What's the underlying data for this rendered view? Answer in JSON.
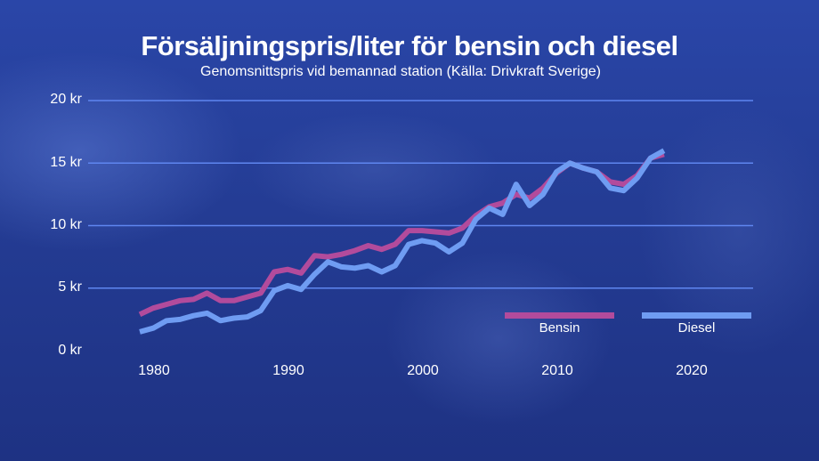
{
  "title": "Försäljningspris/liter för bensin och diesel",
  "subtitle": "Genomsnittspris vid bemannad station (Källa: Drivkraft Sverige)",
  "colors": {
    "bensin": "#b24b9c",
    "diesel": "#6f9cf2",
    "grid": "#5f86f0"
  },
  "y_ticks": [
    "20 kr",
    "15 kr",
    "10 kr",
    "5 kr",
    "0 kr"
  ],
  "x_ticks": [
    "1980",
    "1990",
    "2000",
    "2010",
    "2020"
  ],
  "legend": {
    "bensin": "Bensin",
    "diesel": "Diesel"
  },
  "chart_data": {
    "type": "line",
    "title": "Försäljningspris/liter för bensin och diesel",
    "subtitle": "Genomsnittspris vid bemannad station (Källa: Drivkraft Sverige)",
    "xlabel": "",
    "ylabel": "kr",
    "ylim": [
      0,
      20
    ],
    "grid": true,
    "legend_position": "lower right",
    "x": [
      1980,
      1981,
      1982,
      1983,
      1984,
      1985,
      1986,
      1987,
      1988,
      1989,
      1990,
      1991,
      1992,
      1993,
      1994,
      1995,
      1996,
      1997,
      1998,
      1999,
      2000,
      2001,
      2002,
      2003,
      2004,
      2005,
      2006,
      2007,
      2008,
      2009,
      2010,
      2011,
      2012,
      2013,
      2014,
      2015,
      2016,
      2017,
      2018,
      2019
    ],
    "series": [
      {
        "name": "Bensin",
        "values": [
          2.9,
          3.4,
          3.7,
          4.0,
          4.1,
          4.6,
          4.0,
          4.0,
          4.3,
          4.6,
          6.3,
          6.5,
          6.2,
          7.6,
          7.5,
          7.7,
          8.0,
          8.4,
          8.1,
          8.5,
          9.6,
          9.6,
          9.5,
          9.4,
          9.8,
          10.8,
          11.5,
          11.8,
          12.5,
          12.2,
          13.0,
          14.2,
          15.0,
          14.6,
          14.3,
          13.5,
          13.3,
          14.0,
          15.4,
          15.7
        ]
      },
      {
        "name": "Diesel",
        "values": [
          1.5,
          1.8,
          2.4,
          2.5,
          2.8,
          3.0,
          2.4,
          2.6,
          2.7,
          3.2,
          4.8,
          5.2,
          4.9,
          6.1,
          7.1,
          6.7,
          6.6,
          6.8,
          6.3,
          6.8,
          8.5,
          8.8,
          8.6,
          7.9,
          8.6,
          10.5,
          11.4,
          10.9,
          13.3,
          11.6,
          12.5,
          14.3,
          15.0,
          14.6,
          14.3,
          13.0,
          12.8,
          13.8,
          15.4,
          16.0
        ]
      }
    ]
  }
}
